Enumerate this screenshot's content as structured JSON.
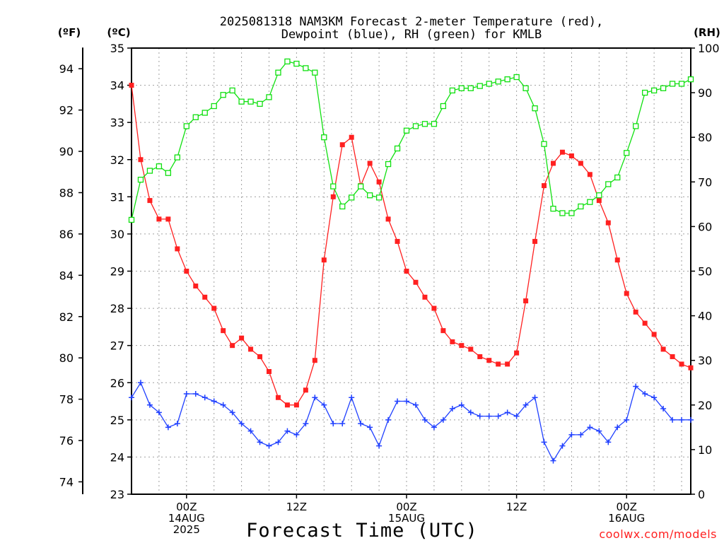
{
  "chart_data": {
    "type": "line",
    "title": [
      "2025081318 NAM3KM Forecast 2-meter Temperature (red),",
      "Dewpoint (blue), RH (green) for KMLB"
    ],
    "xlabel": "Forecast Time (UTC)",
    "credit": "coolwx.com/models",
    "units": {
      "fahrenheit": "(ºF)",
      "celsius": "(ºC)",
      "rh": "(RH)"
    },
    "x_axis": {
      "unit": "forecast hour",
      "range": [
        0,
        61
      ],
      "ticks": [
        {
          "hour": 6,
          "lines": [
            "00Z",
            "14AUG",
            "2025"
          ]
        },
        {
          "hour": 18,
          "lines": [
            "12Z"
          ]
        },
        {
          "hour": 30,
          "lines": [
            "00Z",
            "15AUG"
          ]
        },
        {
          "hour": 42,
          "lines": [
            "12Z"
          ]
        },
        {
          "hour": 54,
          "lines": [
            "00Z",
            "16AUG"
          ]
        }
      ]
    },
    "y_left_celsius": {
      "range": [
        23,
        35
      ],
      "ticks": [
        23,
        24,
        25,
        26,
        27,
        28,
        29,
        30,
        31,
        32,
        33,
        34,
        35
      ]
    },
    "y_left_fahrenheit": {
      "ticks": [
        74,
        76,
        78,
        80,
        82,
        84,
        86,
        88,
        90,
        92,
        94
      ]
    },
    "y_right_rh": {
      "range": [
        0,
        100
      ],
      "ticks": [
        0,
        10,
        20,
        30,
        40,
        50,
        60,
        70,
        80,
        90,
        100
      ]
    },
    "grid": true,
    "colors": {
      "temperature": "#ff2020",
      "dewpoint": "#2040ff",
      "rh": "#10e010",
      "grid": "#a0a0a0"
    },
    "x": [
      0,
      1,
      2,
      3,
      4,
      5,
      6,
      7,
      8,
      9,
      10,
      11,
      12,
      13,
      14,
      15,
      16,
      17,
      18,
      19,
      20,
      21,
      22,
      23,
      24,
      25,
      26,
      27,
      28,
      29,
      30,
      31,
      32,
      33,
      34,
      35,
      36,
      37,
      38,
      39,
      40,
      41,
      42,
      43,
      44,
      45,
      46,
      47,
      48,
      49,
      50,
      51,
      52,
      53,
      54,
      55,
      56,
      57,
      58,
      59,
      60,
      61
    ],
    "series": [
      {
        "name": "Temperature",
        "axis": "celsius",
        "marker": "filled-square",
        "values": [
          34.0,
          32.0,
          30.9,
          30.4,
          30.4,
          29.6,
          29.0,
          28.6,
          28.3,
          28.0,
          27.4,
          27.0,
          27.2,
          26.9,
          26.7,
          26.3,
          25.6,
          25.4,
          25.4,
          25.8,
          26.6,
          29.3,
          31.0,
          32.4,
          32.6,
          31.3,
          31.9,
          31.4,
          30.4,
          29.8,
          29.0,
          28.7,
          28.3,
          28.0,
          27.4,
          27.1,
          27.0,
          26.9,
          26.7,
          26.6,
          26.5,
          26.5,
          26.8,
          28.2,
          29.8,
          31.3,
          31.9,
          32.2,
          32.1,
          31.9,
          31.6,
          30.9,
          30.3,
          29.3,
          28.4,
          27.9,
          27.6,
          27.3,
          26.9,
          26.7,
          26.5,
          26.4
        ]
      },
      {
        "name": "Dewpoint",
        "axis": "celsius",
        "marker": "plus",
        "values": [
          25.6,
          26.0,
          25.4,
          25.2,
          24.8,
          24.9,
          25.7,
          25.7,
          25.6,
          25.5,
          25.4,
          25.2,
          24.9,
          24.7,
          24.4,
          24.3,
          24.4,
          24.7,
          24.6,
          24.9,
          25.6,
          25.4,
          24.9,
          24.9,
          25.6,
          24.9,
          24.8,
          24.3,
          25.0,
          25.5,
          25.5,
          25.4,
          25.0,
          24.8,
          25.0,
          25.3,
          25.4,
          25.2,
          25.1,
          25.1,
          25.1,
          25.2,
          25.1,
          25.4,
          25.6,
          24.4,
          23.9,
          24.3,
          24.6,
          24.6,
          24.8,
          24.7,
          24.4,
          24.8,
          25.0,
          25.9,
          25.7,
          25.6,
          25.3,
          25.0,
          25.0,
          25.0
        ]
      },
      {
        "name": "RH",
        "axis": "rh",
        "marker": "open-square",
        "values": [
          61.5,
          70.5,
          72.5,
          73.5,
          72.0,
          75.5,
          82.5,
          84.5,
          85.5,
          87.0,
          89.5,
          90.5,
          88.0,
          88.0,
          87.5,
          89.0,
          94.5,
          97.0,
          96.5,
          95.5,
          94.5,
          80.0,
          69.0,
          64.5,
          66.5,
          69.0,
          67.0,
          66.5,
          74.0,
          77.5,
          81.5,
          82.5,
          83.0,
          83.0,
          87.0,
          90.5,
          91.0,
          91.0,
          91.5,
          92.0,
          92.5,
          93.0,
          93.5,
          91.0,
          86.5,
          78.5,
          64.0,
          63.0,
          63.0,
          64.5,
          65.5,
          67.0,
          69.5,
          71.0,
          76.5,
          82.5,
          90.0,
          90.5,
          91.0,
          92.0,
          92.0,
          93.0
        ]
      }
    ]
  }
}
